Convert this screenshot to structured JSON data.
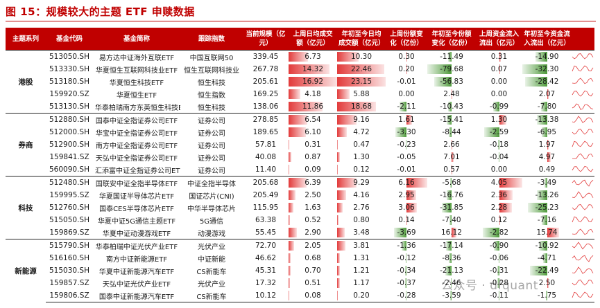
{
  "title": "图 15：规模较大的主题 ETF 申赎数据",
  "headers": [
    "主题系列",
    "基金代码",
    "基金简称",
    "跟踪指数",
    "当前规模（亿元）",
    "上周日均成交额（亿元）",
    "年初至今日均成交额（亿元）",
    "上周份额变化（亿份）",
    "年初至今份额变化（亿份）",
    "上周资金流入流出（亿元）",
    "年初至今资金流入流出（亿元）"
  ],
  "groups": [
    {
      "category": "港股",
      "rows": [
        {
          "code": "513050.SH",
          "name": "易方达中证海外互联ETF",
          "index": "中国互联网50",
          "scale": "339.45",
          "wk_amt": 6.73,
          "ytd_amt": 10.3,
          "wk_share": 0.3,
          "ytd_share": -11.49,
          "wk_flow": 0.31,
          "ytd_flow": -14.9
        },
        {
          "code": "513330.SH",
          "name": "华夏恒生互联网科技业ETF",
          "index": "恒生互联网科技业",
          "scale": "267.78",
          "wk_amt": 14.32,
          "ytd_amt": 22.46,
          "wk_share": 0.2,
          "ytd_share": -79.68,
          "wk_flow": 0.07,
          "ytd_flow": -32.3
        },
        {
          "code": "513180.SH",
          "name": "华夏恒生科技ETF",
          "index": "恒生科技",
          "scale": "205.61",
          "wk_amt": 16.92,
          "ytd_amt": 23.15,
          "wk_share": -0.01,
          "ytd_share": -56.83,
          "wk_flow": 0.0,
          "ytd_flow": -28.42
        },
        {
          "code": "159920.SZ",
          "name": "华夏恒生ETF",
          "index": "恒生指数",
          "scale": "169.25",
          "wk_amt": 4.18,
          "ytd_amt": 5.88,
          "wk_share": 0.0,
          "ytd_share": 2.48,
          "wk_flow": 0.0,
          "ytd_flow": 2.07
        },
        {
          "code": "513130.SH",
          "name": "华泰柏瑞南方东英恒生科技ETF",
          "index": "恒生科技",
          "scale": "138.06",
          "wk_amt": 11.86,
          "ytd_amt": 18.68,
          "wk_share": -2.11,
          "ytd_share": -10.43,
          "wk_flow": -0.99,
          "ytd_flow": -7.8
        }
      ]
    },
    {
      "category": "券商",
      "rows": [
        {
          "code": "512880.SH",
          "name": "国泰中证全指证券公司ETF",
          "index": "证券公司",
          "scale": "278.85",
          "wk_amt": 6.54,
          "ytd_amt": 9.16,
          "wk_share": 1.61,
          "ytd_share": -15.41,
          "wk_flow": 1.3,
          "ytd_flow": -13.38
        },
        {
          "code": "512000.SH",
          "name": "华宝中证全指证券公司ETF",
          "index": "证券公司",
          "scale": "189.65",
          "wk_amt": 6.1,
          "ytd_amt": 4.72,
          "wk_share": -3.3,
          "ytd_share": -8.44,
          "wk_flow": -2.59,
          "ytd_flow": -6.95
        },
        {
          "code": "512900.SH",
          "name": "南方中证全指证券公司ETF",
          "index": "证券公司",
          "scale": "57.81",
          "wk_amt": 0.31,
          "ytd_amt": 0.47,
          "wk_share": -0.23,
          "ytd_share": 2.66,
          "wk_flow": -0.18,
          "ytd_flow": 1.97
        },
        {
          "code": "159841.SZ",
          "name": "天弘中证全指证券公司ETF",
          "index": "证券公司",
          "scale": "40.08",
          "wk_amt": 0.87,
          "ytd_amt": 1.3,
          "wk_share": -0.05,
          "ytd_share": 7.01,
          "wk_flow": -0.04,
          "ytd_flow": 4.97
        },
        {
          "code": "560090.SH",
          "name": "汇添富中证全指证券公司ETF",
          "index": "证券公司",
          "scale": "11.40",
          "wk_amt": 0.09,
          "ytd_amt": 0.12,
          "wk_share": -0.01,
          "ytd_share": 0.57,
          "wk_flow": 0.0,
          "ytd_flow": 0.49
        }
      ]
    },
    {
      "category": "科技",
      "rows": [
        {
          "code": "512480.SH",
          "name": "国联安中证全指半导体ETF",
          "index": "中证全指半导体",
          "scale": "205.68",
          "wk_amt": 6.39,
          "ytd_amt": 9.29,
          "wk_share": 6.16,
          "ytd_share": -5.68,
          "wk_flow": 4.05,
          "ytd_flow": -3.49
        },
        {
          "code": "159995.SZ",
          "name": "华夏国证半导体芯片ETF",
          "index": "国证芯片(CNI)",
          "scale": "205.49",
          "wk_amt": 2.5,
          "ytd_amt": 4.16,
          "wk_share": 2.95,
          "ytd_share": -16.76,
          "wk_flow": 2.36,
          "ytd_flow": -13.26
        },
        {
          "code": "512760.SH",
          "name": "国泰CES半导体芯片ETF",
          "index": "中华半导体芯片",
          "scale": "115.95",
          "wk_amt": 1.63,
          "ytd_amt": 2.76,
          "wk_share": 3.06,
          "ytd_share": -31.85,
          "wk_flow": 2.28,
          "ytd_flow": -25.23
        },
        {
          "code": "515050.SH",
          "name": "华夏中证5G通信主题ETF",
          "index": "5G通信",
          "scale": "63.38",
          "wk_amt": 0.52,
          "ytd_amt": 0.8,
          "wk_share": 0.14,
          "ytd_share": -7.4,
          "wk_flow": 0.12,
          "ytd_flow": -7.16
        },
        {
          "code": "159869.SZ",
          "name": "华夏中证动漫游戏ETF",
          "index": "动漫游戏",
          "scale": "55.45",
          "wk_amt": 2.9,
          "ytd_amt": 3.48,
          "wk_share": -3.69,
          "ytd_share": 16.12,
          "wk_flow": -2.82,
          "ytd_flow": 15.74
        }
      ]
    },
    {
      "category": "新能源",
      "rows": [
        {
          "code": "515790.SH",
          "name": "华泰柏瑞中证光伏产业ETF",
          "index": "光伏产业",
          "scale": "72.70",
          "wk_amt": 2.05,
          "ytd_amt": 3.81,
          "wk_share": -1.36,
          "ytd_share": -17.14,
          "wk_flow": -0.9,
          "ytd_flow": -10.92
        },
        {
          "code": "516160.SH",
          "name": "南方中证新能源ETF",
          "index": "中证新能",
          "scale": "46.62",
          "wk_amt": 0.68,
          "ytd_amt": 1.31,
          "wk_share": -0.12,
          "ytd_share": -8.36,
          "wk_flow": -0.06,
          "ytd_flow": -4.71
        },
        {
          "code": "515030.SH",
          "name": "华夏中证新能源汽车ETF",
          "index": "CS新能车",
          "scale": "45.31",
          "wk_amt": 0.7,
          "ytd_amt": 1.21,
          "wk_share": -0.34,
          "ytd_share": -21.13,
          "wk_flow": -0.31,
          "ytd_flow": -22.49
        },
        {
          "code": "159857.SZ",
          "name": "天弘中证光伏产业ETF",
          "index": "光伏产业",
          "scale": "17.32",
          "wk_amt": 0.51,
          "ytd_amt": 1.17,
          "wk_share": -0.37,
          "ytd_share": -2.46,
          "wk_flow": -0.28,
          "ytd_flow": 2.5
        },
        {
          "code": "159806.SZ",
          "name": "国泰中证新能源汽车ETF",
          "index": "CS新能车",
          "scale": "10.12",
          "wk_amt": 0.08,
          "ytd_amt": 0.2,
          "wk_share": -0.28,
          "ytd_share": -3.59,
          "wk_flow": -0.11,
          "ytd_flow": -1.75
        }
      ]
    }
  ],
  "colors": {
    "header": "#c00000",
    "pos": "#e23b3b",
    "neg": "#4e9a3a"
  },
  "watermark": "公众号 · dfquant"
}
